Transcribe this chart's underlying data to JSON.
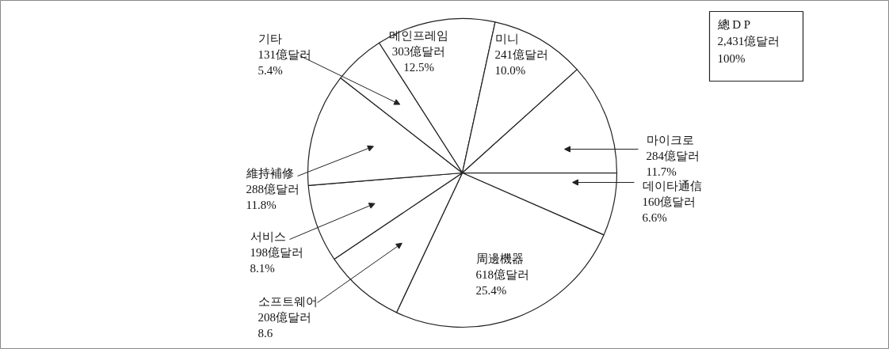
{
  "chart_data": {
    "type": "pie",
    "categories": [
      "메인프레임",
      "미니",
      "마이크로",
      "데이타通信",
      "周邊機器",
      "소프트웨어",
      "서비스",
      "維持補修",
      "기타"
    ],
    "values": [
      303,
      241,
      284,
      160,
      618,
      208,
      198,
      288,
      131
    ],
    "value_labels": [
      "303億달러\n12.5%",
      "241億달러\n10.0%",
      "284億달러\n11.7%",
      "160億달러\n6.6%",
      "618億달러\n25.4%",
      "208億달러\n8.6",
      "198億달러\n8.1%",
      "288億달러\n11.8%",
      "131億달러\n5.4%"
    ],
    "colors": [
      "#ffffff",
      "#ffffff",
      "#ffffff",
      "#ffffff",
      "#ffffff",
      "#ffffff",
      "#ffffff",
      "#ffffff",
      "#ffffff"
    ],
    "annotations": [
      "總 D P\n2,431億달러\n100%"
    ]
  }
}
